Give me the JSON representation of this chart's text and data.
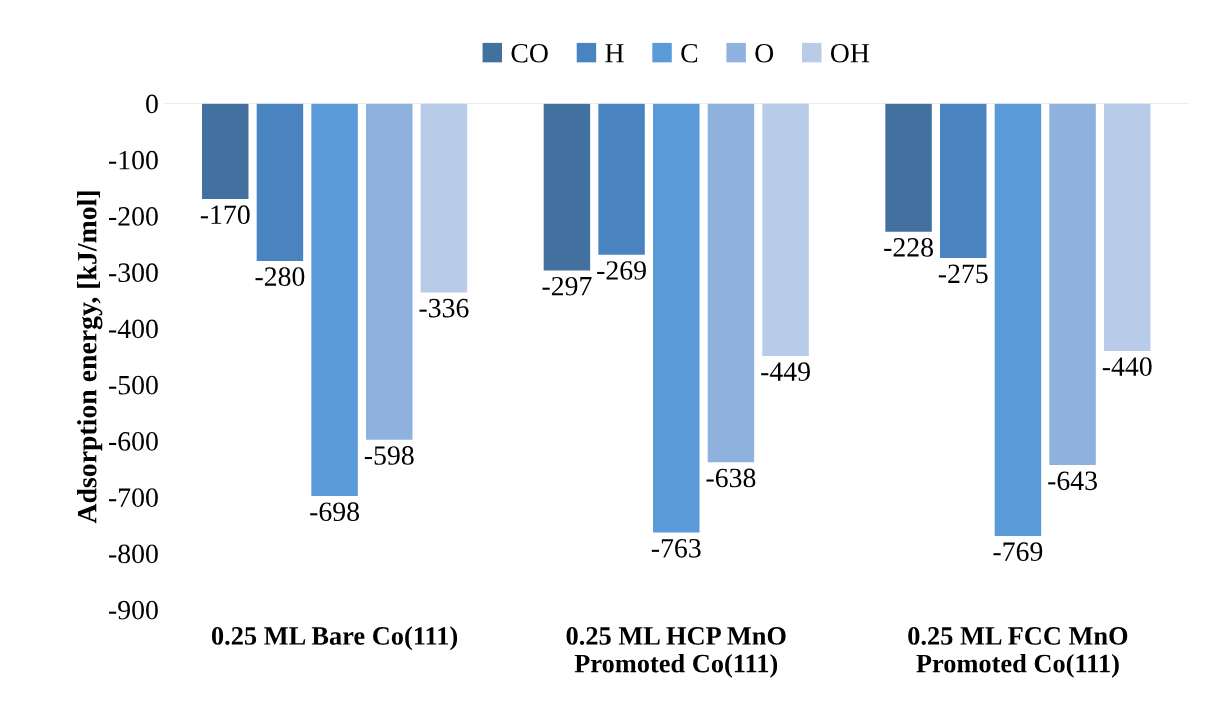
{
  "chart_data": {
    "type": "bar",
    "ylabel": "Adsorption energy, [kJ/mol]",
    "categories": [
      "0.25 ML Bare Co(111)",
      "0.25 ML HCP MnO\nPromoted Co(111)",
      "0.25 ML FCC MnO\nPromoted Co(111)"
    ],
    "series": [
      {
        "name": "CO",
        "color": "#42719f",
        "values": [
          -170,
          -297,
          -228
        ]
      },
      {
        "name": "H",
        "color": "#4a84c0",
        "values": [
          -280,
          -269,
          -275
        ]
      },
      {
        "name": "C",
        "color": "#5a9ad8",
        "values": [
          -698,
          -763,
          -769
        ]
      },
      {
        "name": "O",
        "color": "#8eb1de",
        "values": [
          -598,
          -638,
          -643
        ]
      },
      {
        "name": "OH",
        "color": "#b8cbe8",
        "values": [
          -336,
          -449,
          -440
        ]
      }
    ],
    "ylim": [
      -900,
      0
    ],
    "yticks": [
      0,
      -100,
      -200,
      -300,
      -400,
      -500,
      -600,
      -700,
      -800,
      -900
    ],
    "data_labels": true,
    "legend": "top",
    "grid": false
  }
}
